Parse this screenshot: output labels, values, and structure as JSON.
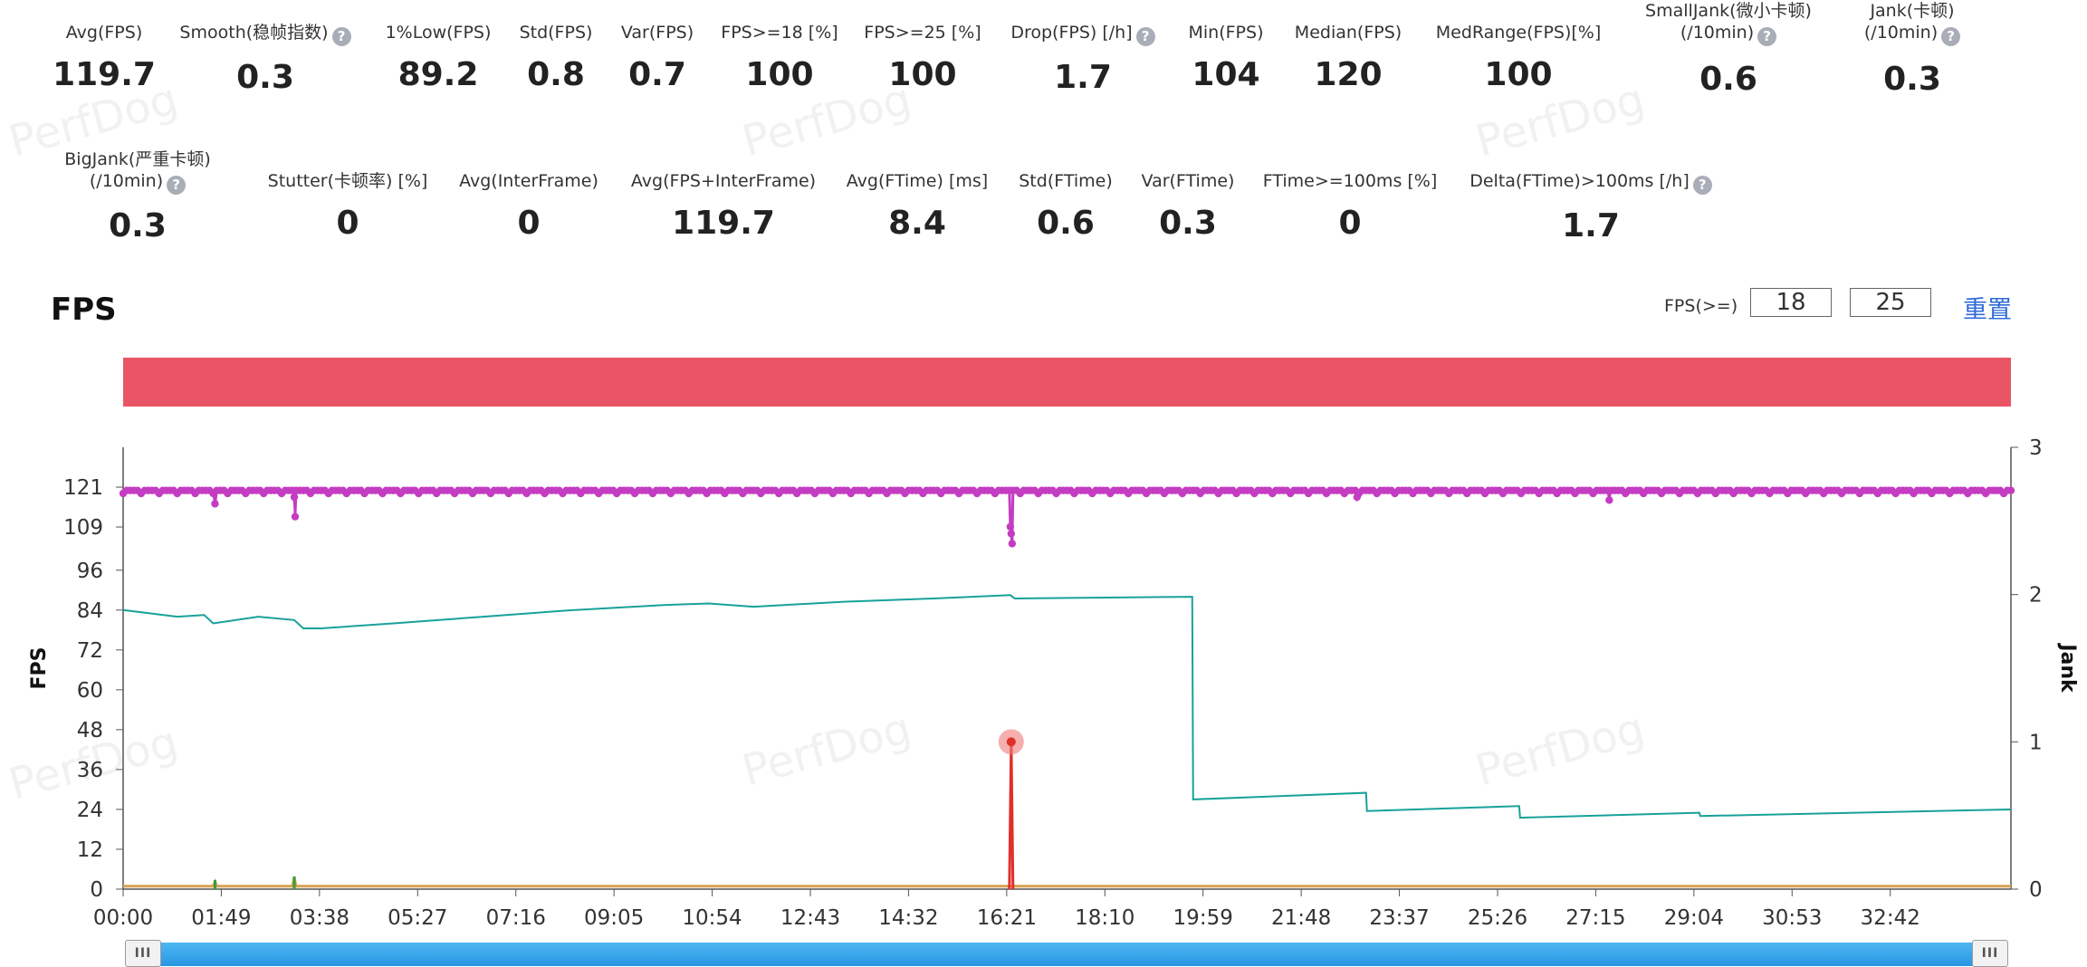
{
  "stats_row1": [
    {
      "label": "Avg(FPS)",
      "value": "119.7",
      "help": false
    },
    {
      "label": "Smooth(稳帧指数)",
      "value": "0.3",
      "help": true
    },
    {
      "label": "1%Low(FPS)",
      "value": "89.2",
      "help": false
    },
    {
      "label": "Std(FPS)",
      "value": "0.8",
      "help": false
    },
    {
      "label": "Var(FPS)",
      "value": "0.7",
      "help": false
    },
    {
      "label": "FPS>=18 [%]",
      "value": "100",
      "help": false
    },
    {
      "label": "FPS>=25 [%]",
      "value": "100",
      "help": false
    },
    {
      "label": "Drop(FPS) [/h]",
      "value": "1.7",
      "help": true
    },
    {
      "label": "Min(FPS)",
      "value": "104",
      "help": false
    },
    {
      "label": "Median(FPS)",
      "value": "120",
      "help": false
    },
    {
      "label": "MedRange(FPS)[%]",
      "value": "100",
      "help": false
    },
    {
      "label": "SmallJank(微小卡顿)",
      "label2": "(/10min)",
      "value": "0.6",
      "help": true
    },
    {
      "label": "Jank(卡顿)",
      "label2": "(/10min)",
      "value": "0.3",
      "help": true
    }
  ],
  "stats_row2": [
    {
      "label": "BigJank(严重卡顿)",
      "label2": "(/10min)",
      "value": "0.3",
      "help": true
    },
    {
      "label": "Stutter(卡顿率) [%]",
      "value": "0",
      "help": false
    },
    {
      "label": "Avg(InterFrame)",
      "value": "0",
      "help": false
    },
    {
      "label": "Avg(FPS+InterFrame)",
      "value": "119.7",
      "help": false
    },
    {
      "label": "Avg(FTime) [ms]",
      "value": "8.4",
      "help": false
    },
    {
      "label": "Std(FTime)",
      "value": "0.6",
      "help": false
    },
    {
      "label": "Var(FTime)",
      "value": "0.3",
      "help": false
    },
    {
      "label": "FTime>=100ms [%]",
      "value": "0",
      "help": false
    },
    {
      "label": "Delta(FTime)>100ms [/h]",
      "value": "1.7",
      "help": true
    }
  ],
  "help_icon": {
    "glyph": "?",
    "icon": "question-circle-icon",
    "color": "#a9adb8"
  },
  "watermark_text": "PerfDog",
  "section_title": "FPS",
  "threshold": {
    "label": "FPS(>=)",
    "value1": "18",
    "value2": "25",
    "reset_label": "重置"
  },
  "colors": {
    "fps": "#c43cc2",
    "jank": "#18a19a",
    "spike": "#e0302a",
    "spike_halo": "#f07a7a",
    "baseline_green": "#3a9b3a",
    "baseline_orange": "#d9a050",
    "red_band": "#ea5565",
    "slider": "#2796e2",
    "reset_link": "#2f6bd8"
  },
  "slider": {
    "left_grip": "III",
    "right_grip": "III"
  },
  "chart_data": {
    "type": "line",
    "ylabel": "FPS",
    "y2label": "Jank",
    "y_ticks": [
      0,
      12,
      24,
      36,
      48,
      60,
      72,
      84,
      96,
      109,
      121
    ],
    "y_lim": [
      0,
      133
    ],
    "y2_ticks": [
      0,
      1,
      2,
      3
    ],
    "y2_lim": [
      0,
      3
    ],
    "x_tick_labels": [
      "00:00",
      "01:49",
      "03:38",
      "05:27",
      "07:16",
      "09:05",
      "10:54",
      "12:43",
      "14:32",
      "16:21",
      "18:10",
      "19:59",
      "21:48",
      "23:37",
      "25:26",
      "27:15",
      "29:04",
      "30:53",
      "32:42"
    ],
    "x_tick_step_seconds": 109,
    "x_lim_seconds": [
      0,
      2096
    ],
    "grid": false,
    "series": [
      {
        "id": "fps",
        "axis": "left",
        "marker": "circle",
        "base_value": 120,
        "dips": [
          {
            "t": 102,
            "value": 116
          },
          {
            "t": 190,
            "value": 118
          },
          {
            "t": 191,
            "value": 113
          },
          {
            "t": 985,
            "value": 110
          },
          {
            "t": 986,
            "value": 107
          },
          {
            "t": 987,
            "value": 104
          },
          {
            "t": 1370,
            "value": 118
          },
          {
            "t": 1650,
            "value": 118
          }
        ]
      },
      {
        "id": "jank",
        "axis": "left",
        "points": [
          [
            0,
            84
          ],
          [
            60,
            82
          ],
          [
            90,
            82.5
          ],
          [
            100,
            80
          ],
          [
            150,
            82
          ],
          [
            190,
            81
          ],
          [
            200,
            78.5
          ],
          [
            220,
            78.5
          ],
          [
            300,
            80
          ],
          [
            400,
            82
          ],
          [
            500,
            84
          ],
          [
            600,
            85.5
          ],
          [
            650,
            86
          ],
          [
            700,
            85
          ],
          [
            800,
            86.5
          ],
          [
            900,
            87.5
          ],
          [
            985,
            88.5
          ],
          [
            990,
            87.5
          ],
          [
            1187,
            88
          ],
          [
            1188,
            27
          ],
          [
            1380,
            29
          ],
          [
            1381,
            23.5
          ],
          [
            1550,
            25
          ],
          [
            1551,
            21.5
          ],
          [
            1750,
            23
          ],
          [
            1751,
            22
          ],
          [
            2096,
            24
          ]
        ]
      },
      {
        "id": "jank_spike",
        "axis": "right",
        "points": [
          [
            984,
            0
          ],
          [
            986,
            1
          ],
          [
            988,
            0
          ]
        ],
        "marker_value": 1
      },
      {
        "id": "baseline",
        "axis": "right",
        "points": [
          [
            0,
            0.02
          ],
          [
            100,
            0.02
          ],
          [
            102,
            0.05
          ],
          [
            104,
            0.02
          ],
          [
            188,
            0.02
          ],
          [
            190,
            0.08
          ],
          [
            192,
            0.02
          ],
          [
            2096,
            0.02
          ]
        ]
      }
    ]
  }
}
